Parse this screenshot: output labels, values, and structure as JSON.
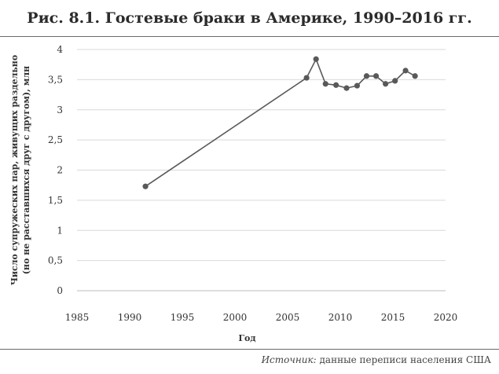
{
  "title": "Рис. 8.1. Гостевые браки в Америке, 1990–2016 гг.",
  "source": {
    "label": "Источник:",
    "text": "данные переписи населения США"
  },
  "chart_data": {
    "type": "line",
    "xlabel": "Год",
    "ylabel_line1": "Число супружеских пар, живущих раздельно",
    "ylabel_line2": "(но не расставшихся друг с другом), млн",
    "xlim": [
      1985,
      2020
    ],
    "ylim": [
      0,
      4
    ],
    "x_ticks": [
      1985,
      1990,
      1995,
      2000,
      2005,
      2010,
      2015,
      2020
    ],
    "x_tick_labels": [
      "1985",
      "1990",
      "1995",
      "2000",
      "2005",
      "2010",
      "2015",
      "2020"
    ],
    "y_ticks": [
      0,
      0.5,
      1,
      1.5,
      2,
      2.5,
      3,
      3.5,
      4
    ],
    "y_tick_labels": [
      "0",
      "0,5",
      "1",
      "1,5",
      "2",
      "2,5",
      "3",
      "3,5",
      "4"
    ],
    "grid": "horizontal",
    "line_color": "#595959",
    "x": [
      1991.5,
      2006.8,
      2007.7,
      2008.6,
      2009.6,
      2010.6,
      2011.6,
      2012.5,
      2013.4,
      2014.3,
      2015.2,
      2016.2,
      2017.1
    ],
    "y": [
      1.73,
      3.53,
      3.84,
      3.43,
      3.41,
      3.36,
      3.4,
      3.56,
      3.56,
      3.43,
      3.48,
      3.65,
      3.56
    ]
  }
}
